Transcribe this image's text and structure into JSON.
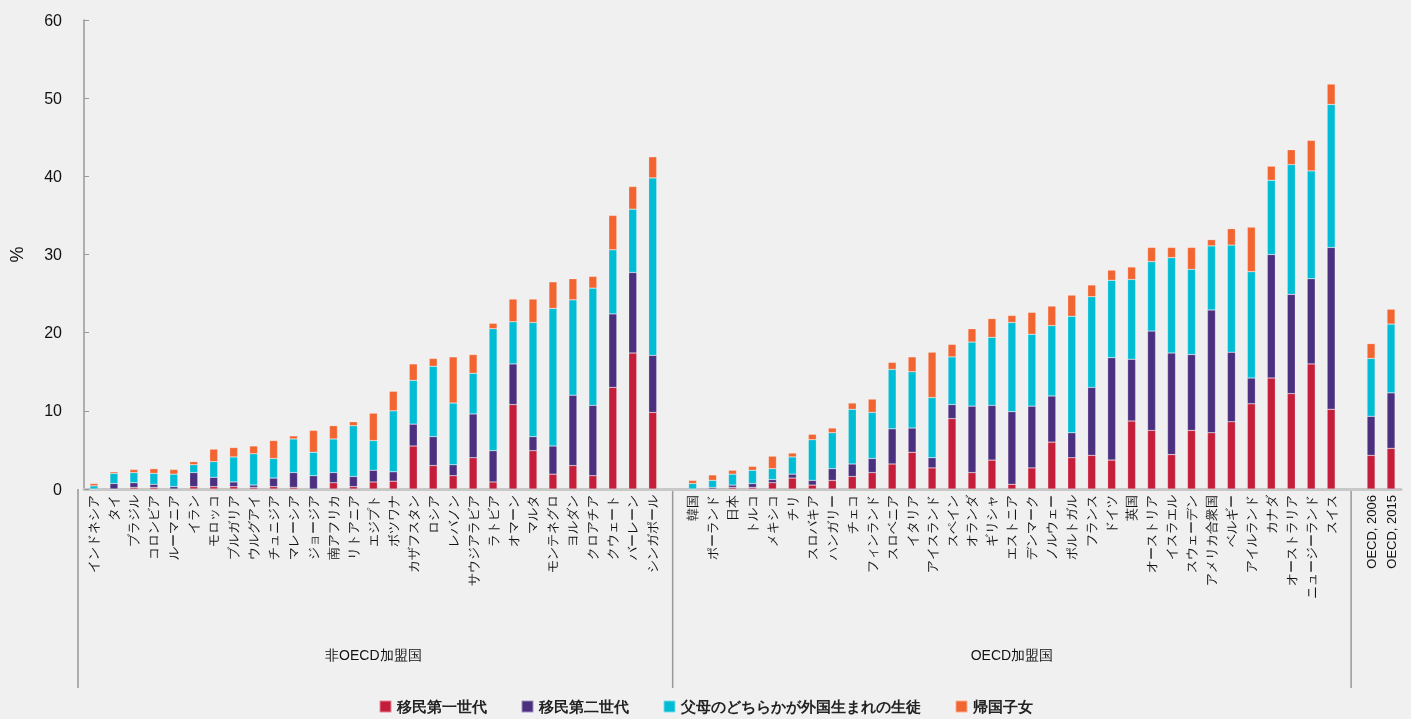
{
  "chart_data": {
    "type": "bar",
    "stacked": true,
    "ylabel": "%",
    "ylim": [
      0,
      60
    ],
    "yticks": [
      0,
      10,
      20,
      30,
      40,
      50,
      60
    ],
    "legend": "bottom",
    "annotations": [
      "非OECD加盟国",
      "OECD加盟国"
    ],
    "categories": [
      "インドネシア",
      "タイ",
      "ブラジル",
      "コロンビア",
      "ルーマニア",
      "イラン",
      "モロッコ",
      "ブルガリア",
      "ウルグアイ",
      "チュニジア",
      "マレーシア",
      "ジョージア",
      "南アフリカ",
      "リトアニア",
      "エジプト",
      "ボツワナ",
      "カザフスタン",
      "ロシア",
      "レバノン",
      "サウジアラビア",
      "ラトビア",
      "オマーン",
      "マルタ",
      "モンテネグロ",
      "ヨルダン",
      "クロアチア",
      "クウェート",
      "バーレーン",
      "シンガポール",
      null,
      "韓国",
      "ポーランド",
      "日本",
      "トルコ",
      "メキシコ",
      "チリ",
      "スロバキア",
      "ハンガリー",
      "チェコ",
      "フィンランド",
      "スロベニア",
      "イタリア",
      "アイスランド",
      "スペイン",
      "オランダ",
      "ギリシャ",
      "エストニア",
      "デンマーク",
      "ノルウェー",
      "ポルトガル",
      "フランス",
      "ドイツ",
      "英国",
      "オーストリア",
      "イスラエル",
      "スウェーデン",
      "アメリカ合衆国",
      "ベルギー",
      "アイルランド",
      "カナダ",
      "オーストラリア",
      "ニュージーランド",
      "スイス",
      null,
      "OECD, 2006",
      "OECD, 2015"
    ],
    "series": [
      {
        "name": "移民第一世代",
        "color": "#c41e3a",
        "values": [
          0,
          0,
          0.2,
          0.2,
          null,
          0.3,
          0.3,
          0.3,
          0.2,
          0.3,
          0.2,
          null,
          0.8,
          0.3,
          0.9,
          1.0,
          5.5,
          3.0,
          1.7,
          4.0,
          0.9,
          10.8,
          4.9,
          1.9,
          3.0,
          1.7,
          13.0,
          17.4,
          9.8,
          null,
          0,
          0,
          0.2,
          0.2,
          0.8,
          1.4,
          0.5,
          1.1,
          1.6,
          2.1,
          3.2,
          4.7,
          2.7,
          9.0,
          2.1,
          3.7,
          0.6,
          2.7,
          6.0,
          4.0,
          4.3,
          3.7,
          8.7,
          7.5,
          4.4,
          7.5,
          7.2,
          8.6,
          10.9,
          14.2,
          12.2,
          16.0,
          10.2,
          null,
          4.3,
          5.2
        ]
      },
      {
        "name": "移民第二世代",
        "color": "#4b3080",
        "values": [
          null,
          0.7,
          0.6,
          0.4,
          0.3,
          1.8,
          1.2,
          0.6,
          0.3,
          1.1,
          1.9,
          1.7,
          1.3,
          1.3,
          1.5,
          1.2,
          2.8,
          3.7,
          1.4,
          5.6,
          4.0,
          5.2,
          1.8,
          3.6,
          9.0,
          9.0,
          9.4,
          10.3,
          7.3,
          null,
          null,
          0.2,
          0.3,
          0.5,
          0.4,
          0.5,
          0.6,
          1.5,
          1.6,
          1.8,
          4.5,
          3.1,
          1.3,
          1.8,
          8.5,
          7.0,
          9.3,
          7.9,
          5.9,
          3.2,
          8.7,
          13.1,
          7.9,
          12.7,
          13.0,
          9.7,
          15.7,
          8.9,
          3.3,
          15.8,
          12.7,
          10.9,
          20.7,
          null,
          5.0,
          7.1
        ]
      },
      {
        "name": "父母のどちらかが外国生まれの生徒",
        "color": "#00bcd4",
        "values": [
          0.4,
          1.3,
          1.3,
          1.4,
          1.6,
          1.0,
          2.0,
          3.2,
          4.0,
          2.5,
          4.3,
          3.0,
          4.3,
          6.5,
          3.8,
          7.8,
          5.6,
          9.0,
          7.9,
          5.2,
          15.6,
          5.4,
          14.6,
          17.6,
          12.2,
          15.0,
          8.2,
          8.1,
          22.7,
          null,
          0.7,
          0.9,
          1.4,
          1.7,
          1.4,
          2.2,
          5.2,
          4.6,
          7.0,
          5.9,
          7.6,
          7.2,
          7.7,
          6.1,
          8.2,
          8.7,
          11.4,
          9.2,
          9.0,
          14.9,
          11.6,
          9.9,
          10.2,
          8.9,
          12.2,
          10.9,
          8.2,
          13.7,
          13.6,
          9.5,
          16.6,
          13.8,
          18.3,
          null,
          7.4,
          8.8
        ]
      },
      {
        "name": "帰国子女",
        "color": "#f26531",
        "values": [
          0.3,
          0.2,
          0.4,
          0.6,
          0.6,
          0.4,
          1.6,
          1.2,
          1.0,
          2.3,
          0.4,
          2.8,
          1.7,
          0.5,
          3.5,
          2.5,
          2.1,
          1.0,
          5.9,
          2.4,
          0.7,
          2.9,
          3.0,
          3.4,
          2.7,
          1.5,
          4.4,
          2.9,
          2.7,
          null,
          0.4,
          0.7,
          0.5,
          0.5,
          1.6,
          0.5,
          0.7,
          0.6,
          0.8,
          1.7,
          0.9,
          1.9,
          5.8,
          1.6,
          1.7,
          2.4,
          0.9,
          2.8,
          2.5,
          2.7,
          1.5,
          1.3,
          1.6,
          1.8,
          1.3,
          2.8,
          0.8,
          2.1,
          5.7,
          1.8,
          1.9,
          3.9,
          2.6,
          null,
          1.9,
          1.9
        ]
      }
    ]
  }
}
